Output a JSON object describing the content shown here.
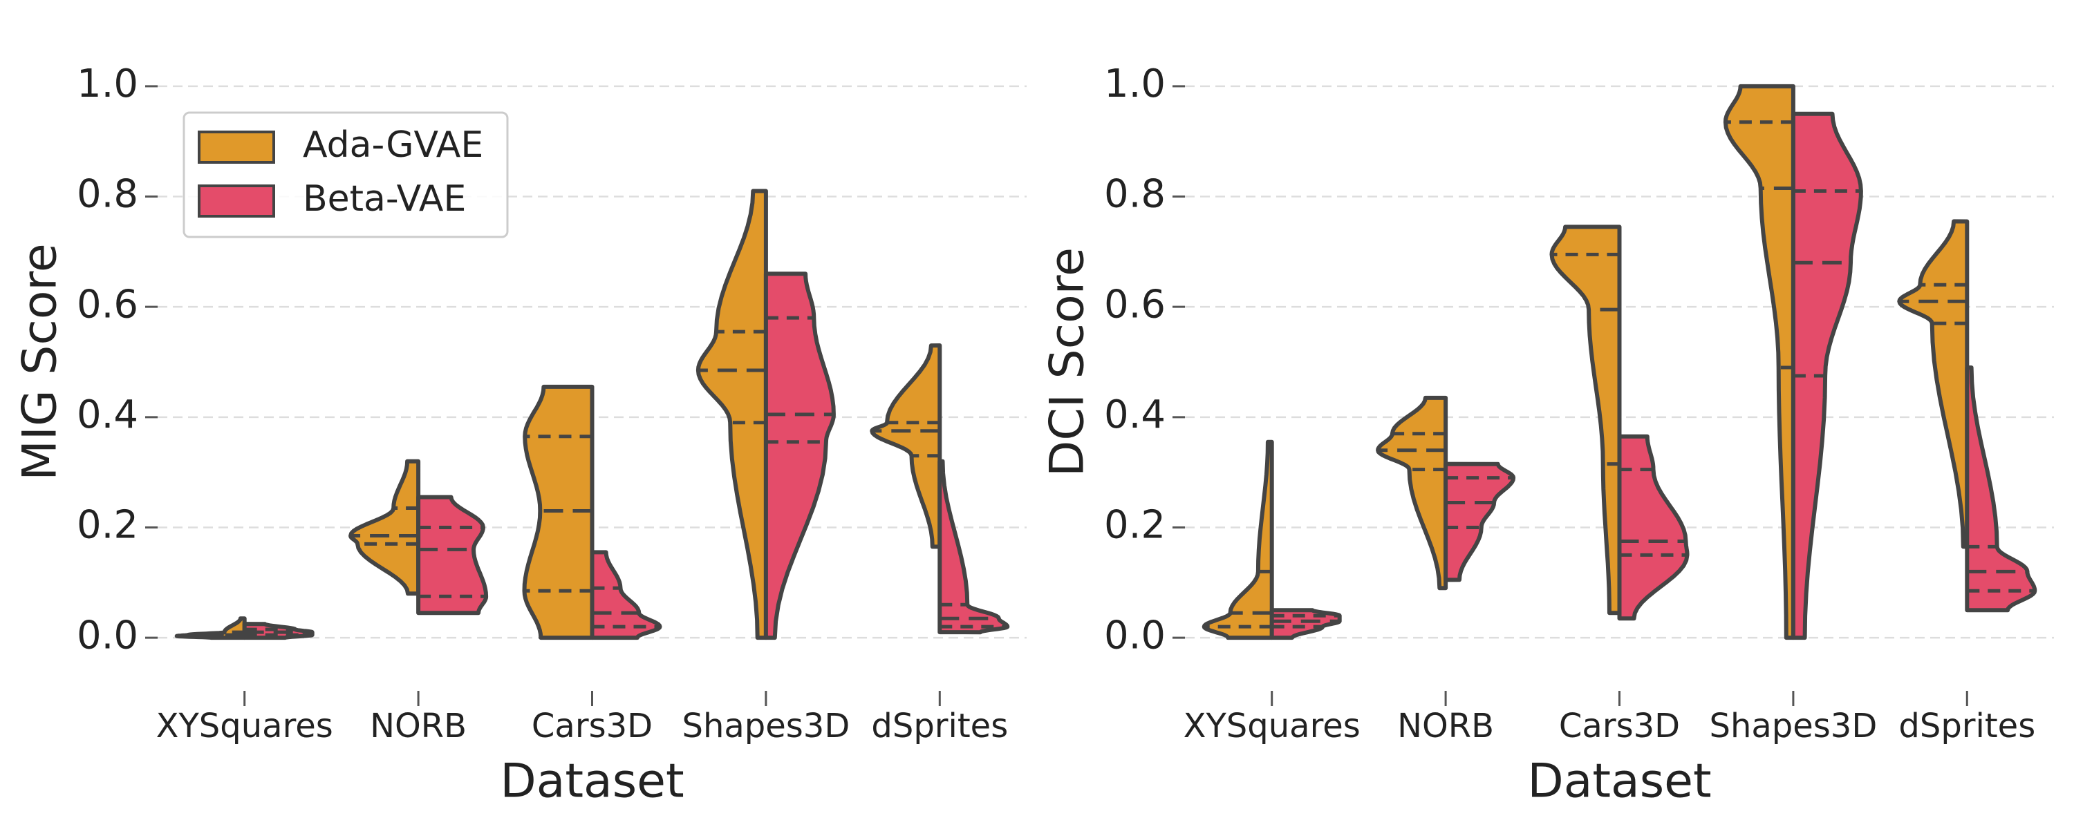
{
  "chart_data": [
    {
      "type": "violin",
      "ylabel": "MIG Score",
      "xlabel": "Dataset",
      "categories": [
        "XYSquares",
        "NORB",
        "Cars3D",
        "Shapes3D",
        "dSprites"
      ],
      "ylim": [
        -0.08,
        1.08
      ],
      "yticks": [
        {
          "value": 0,
          "label": "0.0"
        },
        0.2,
        0.4,
        0.6,
        0.8,
        {
          "value": 1,
          "label": "1.0"
        }
      ],
      "grid": true,
      "legend": "upper left",
      "series": [
        {
          "name": "Ada-GVAE",
          "color": "#e0992a",
          "values": [
            {
              "min": 0,
              "q1": 0.003,
              "median": 0.005,
              "q3": 0.01,
              "max": 0.035
            },
            {
              "min": 0.08,
              "q1": 0.17,
              "median": 0.185,
              "q3": 0.235,
              "max": 0.32
            },
            {
              "min": 0,
              "q1": 0.085,
              "median": 0.23,
              "q3": 0.365,
              "max": 0.455
            },
            {
              "min": 0,
              "q1": 0.39,
              "median": 0.485,
              "q3": 0.555,
              "max": 0.81
            },
            {
              "min": 0.165,
              "q1": 0.33,
              "median": 0.375,
              "q3": 0.39,
              "max": 0.53
            }
          ]
        },
        {
          "name": "Beta-VAE",
          "color": "#e44c6a",
          "values": [
            {
              "min": 0,
              "q1": 0.005,
              "median": 0.01,
              "q3": 0.015,
              "max": 0.025
            },
            {
              "min": 0.045,
              "q1": 0.075,
              "median": 0.16,
              "q3": 0.2,
              "max": 0.255
            },
            {
              "min": 0,
              "q1": 0.02,
              "median": 0.045,
              "q3": 0.09,
              "max": 0.155
            },
            {
              "min": 0,
              "q1": 0.355,
              "median": 0.405,
              "q3": 0.58,
              "max": 0.66
            },
            {
              "min": 0.01,
              "q1": 0.02,
              "median": 0.035,
              "q3": 0.06,
              "max": 0.32
            }
          ]
        }
      ]
    },
    {
      "type": "violin",
      "ylabel": "DCI Score",
      "xlabel": "Dataset",
      "categories": [
        "XYSquares",
        "NORB",
        "Cars3D",
        "Shapes3D",
        "dSprites"
      ],
      "ylim": [
        -0.08,
        1.08
      ],
      "yticks": [
        {
          "value": 0,
          "label": "0.0"
        },
        0.2,
        0.4,
        0.6,
        0.8,
        {
          "value": 1,
          "label": "1.0"
        }
      ],
      "grid": true,
      "series": [
        {
          "color": "#e0992a",
          "values": [
            {
              "min": 0,
              "q1": 0.02,
              "median": 0.045,
              "q3": 0.12,
              "max": 0.355
            },
            {
              "min": 0.09,
              "q1": 0.305,
              "median": 0.34,
              "q3": 0.37,
              "max": 0.435
            },
            {
              "min": 0.045,
              "q1": 0.315,
              "median": 0.595,
              "q3": 0.695,
              "max": 0.745
            },
            {
              "min": 0,
              "q1": 0.49,
              "median": 0.815,
              "q3": 0.935,
              "max": 1.0
            },
            {
              "min": 0.165,
              "q1": 0.57,
              "median": 0.61,
              "q3": 0.64,
              "max": 0.755
            }
          ]
        },
        {
          "color": "#e44c6a",
          "values": [
            {
              "min": 0,
              "q1": 0.02,
              "median": 0.03,
              "q3": 0.04,
              "max": 0.05
            },
            {
              "min": 0.105,
              "q1": 0.2,
              "median": 0.245,
              "q3": 0.29,
              "max": 0.315
            },
            {
              "min": 0.035,
              "q1": 0.15,
              "median": 0.175,
              "q3": 0.305,
              "max": 0.365
            },
            {
              "min": 0,
              "q1": 0.475,
              "median": 0.68,
              "q3": 0.81,
              "max": 0.95
            },
            {
              "min": 0.05,
              "q1": 0.085,
              "median": 0.12,
              "q3": 0.165,
              "max": 0.49
            }
          ]
        }
      ]
    }
  ]
}
